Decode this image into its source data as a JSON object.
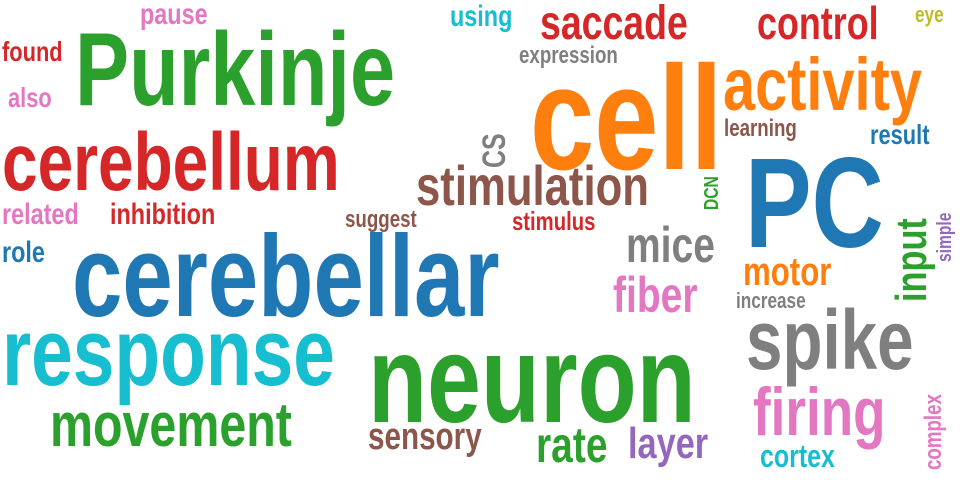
{
  "colors": {
    "green": "#2ca02c",
    "blue": "#1f77b4",
    "orange": "#ff7f0e",
    "red": "#d62728",
    "cyan": "#17becf",
    "brown": "#8c564b",
    "gray": "#7f7f7f",
    "pink": "#e377c2",
    "purple": "#9467bd",
    "olive": "#bcbd22"
  },
  "words": {
    "purkinje": {
      "text": "Purkinje",
      "color": "#2ca02c"
    },
    "cerebellar": {
      "text": "cerebellar",
      "color": "#1f77b4"
    },
    "neuron": {
      "text": "neuron",
      "color": "#2ca02c"
    },
    "cell": {
      "text": "cell",
      "color": "#ff7f0e"
    },
    "response": {
      "text": "response",
      "color": "#17becf"
    },
    "pc": {
      "text": "PC",
      "color": "#1f77b4"
    },
    "cerebellum": {
      "text": "cerebellum",
      "color": "#d62728"
    },
    "activity": {
      "text": "activity",
      "color": "#ff7f0e"
    },
    "spike": {
      "text": "spike",
      "color": "#7f7f7f"
    },
    "stimulation": {
      "text": "stimulation",
      "color": "#8c564b"
    },
    "movement": {
      "text": "movement",
      "color": "#2ca02c"
    },
    "firing": {
      "text": "firing",
      "color": "#e377c2"
    },
    "saccade": {
      "text": "saccade",
      "color": "#d62728"
    },
    "control": {
      "text": "control",
      "color": "#d62728"
    },
    "mice": {
      "text": "mice",
      "color": "#7f7f7f"
    },
    "motor": {
      "text": "motor",
      "color": "#ff7f0e"
    },
    "fiber": {
      "text": "fiber",
      "color": "#e377c2"
    },
    "sensory": {
      "text": "sensory",
      "color": "#8c564b"
    },
    "rate": {
      "text": "rate",
      "color": "#2ca02c"
    },
    "layer": {
      "text": "layer",
      "color": "#9467bd"
    },
    "cortex": {
      "text": "cortex",
      "color": "#17becf"
    },
    "pause": {
      "text": "pause",
      "color": "#e377c2"
    },
    "using": {
      "text": "using",
      "color": "#17becf"
    },
    "found": {
      "text": "found",
      "color": "#d62728"
    },
    "also": {
      "text": "also",
      "color": "#e377c2"
    },
    "expression": {
      "text": "expression",
      "color": "#7f7f7f"
    },
    "learning": {
      "text": "learning",
      "color": "#8c564b"
    },
    "result": {
      "text": "result",
      "color": "#1f77b4"
    },
    "related": {
      "text": "related",
      "color": "#e377c2"
    },
    "inhibition": {
      "text": "inhibition",
      "color": "#d62728"
    },
    "role": {
      "text": "role",
      "color": "#1f77b4"
    },
    "suggest": {
      "text": "suggest",
      "color": "#8c564b"
    },
    "stimulus": {
      "text": "stimulus",
      "color": "#d62728"
    },
    "eye": {
      "text": "eye",
      "color": "#bcbd22"
    },
    "increase": {
      "text": "increase",
      "color": "#7f7f7f"
    },
    "cs": {
      "text": "CS",
      "color": "#7f7f7f"
    },
    "dcn": {
      "text": "DCN",
      "color": "#2ca02c"
    },
    "input": {
      "text": "input",
      "color": "#2ca02c"
    },
    "simple": {
      "text": "simple",
      "color": "#9467bd"
    },
    "complex": {
      "text": "complex",
      "color": "#e377c2"
    }
  }
}
